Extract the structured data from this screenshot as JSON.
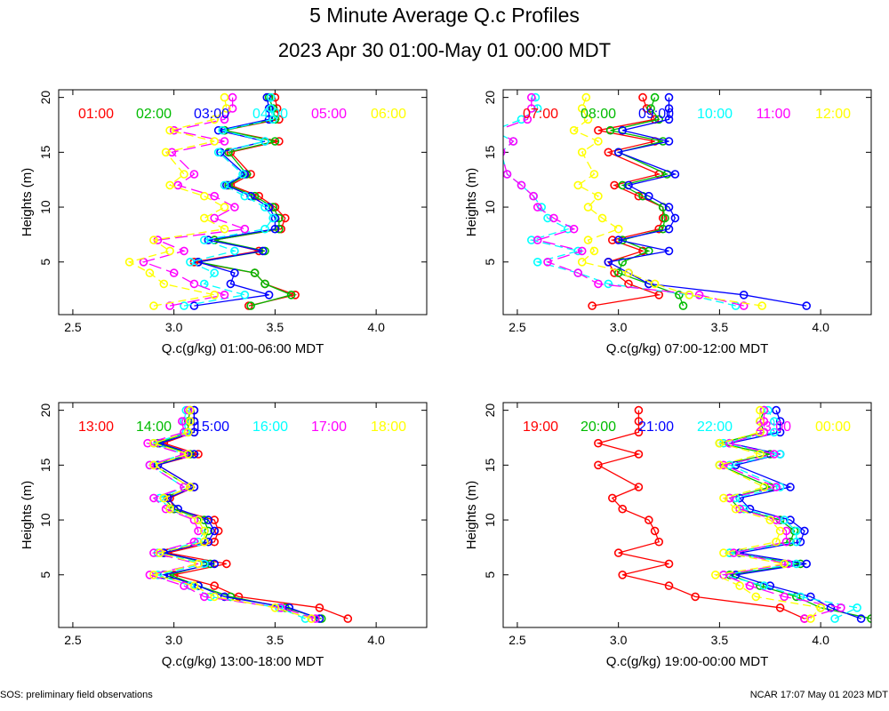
{
  "title": "5 Minute Average Q.c Profiles",
  "subtitle": "2023 Apr 30 01:00-May 01 00:00 MDT",
  "footer_left": "SOS: preliminary field observations",
  "footer_right": "NCAR 17:07 May 01 2023 MDT",
  "colors": [
    "#ff0000",
    "#00bb00",
    "#0000ff",
    "#00ffff",
    "#ff00ff",
    "#ffff00"
  ],
  "heights": [
    1,
    2,
    3,
    4,
    5,
    6,
    7,
    8,
    9,
    10,
    11,
    12,
    13,
    15,
    16,
    17,
    18,
    19,
    20
  ],
  "chart_data": [
    {
      "type": "line",
      "xlabel": "Q.c(g/kg) 01:00-06:00 MDT",
      "ylabel": "Heights (m)",
      "xlim": [
        2.43,
        4.25
      ],
      "ylim": [
        0.2,
        20.7
      ],
      "xticks": [
        "2.5",
        "3.0",
        "3.5",
        "4.0"
      ],
      "yticks": [
        "5",
        "10",
        "15",
        "20"
      ],
      "series": [
        {
          "name": "01:00",
          "values": [
            3.37,
            3.6,
            3.45,
            3.4,
            3.1,
            3.42,
            3.2,
            3.53,
            3.55,
            3.5,
            3.42,
            3.28,
            3.38,
            3.28,
            3.52,
            3.25,
            3.52,
            3.51,
            3.5
          ]
        },
        {
          "name": "02:00",
          "values": [
            3.38,
            3.58,
            3.45,
            3.4,
            3.12,
            3.45,
            3.2,
            3.52,
            3.52,
            3.49,
            3.4,
            3.27,
            3.36,
            3.27,
            3.5,
            3.25,
            3.5,
            3.49,
            3.47
          ]
        },
        {
          "name": "03:00",
          "values": [
            3.1,
            3.47,
            3.28,
            3.3,
            3.12,
            3.44,
            3.17,
            3.5,
            3.5,
            3.47,
            3.38,
            3.26,
            3.35,
            3.23,
            3.45,
            3.22,
            3.47,
            3.47,
            3.46
          ]
        },
        {
          "name": "04:00",
          "values": [
            3.05,
            3.35,
            3.15,
            3.2,
            3.08,
            3.3,
            3.15,
            3.45,
            3.49,
            3.45,
            3.35,
            3.25,
            3.34,
            3.22,
            3.45,
            3.24,
            3.49,
            3.48,
            3.48
          ]
        },
        {
          "name": "05:00",
          "values": [
            2.98,
            3.25,
            3.1,
            3.0,
            2.85,
            3.05,
            2.92,
            3.35,
            3.2,
            3.3,
            3.2,
            3.02,
            3.1,
            2.99,
            3.25,
            3.0,
            3.25,
            3.29,
            3.29
          ]
        },
        {
          "name": "06:00",
          "values": [
            2.9,
            3.2,
            2.95,
            2.88,
            2.78,
            2.98,
            2.9,
            3.25,
            3.15,
            3.25,
            3.15,
            2.98,
            3.05,
            2.96,
            3.2,
            2.98,
            3.2,
            3.26,
            3.25
          ]
        }
      ]
    },
    {
      "type": "line",
      "xlabel": "Q.c(g/kg) 07:00-12:00 MDT",
      "ylabel": "Heights (m)",
      "xlim": [
        2.43,
        4.25
      ],
      "ylim": [
        0.2,
        20.7
      ],
      "xticks": [
        "2.5",
        "3.0",
        "3.5",
        "4.0"
      ],
      "yticks": [
        "5",
        "10",
        "15",
        "20"
      ],
      "series": [
        {
          "name": "07:00",
          "values": [
            2.87,
            3.2,
            3.05,
            2.98,
            2.95,
            3.12,
            2.97,
            3.2,
            3.22,
            3.22,
            3.1,
            2.98,
            3.2,
            2.95,
            3.18,
            2.9,
            3.18,
            3.14,
            3.12
          ]
        },
        {
          "name": "08:00",
          "values": [
            3.32,
            3.3,
            3.15,
            3.0,
            3.02,
            3.15,
            3.02,
            3.22,
            3.23,
            3.22,
            3.12,
            3.02,
            3.24,
            3.0,
            3.22,
            2.96,
            3.2,
            3.16,
            3.18
          ]
        },
        {
          "name": "09:00",
          "values": [
            3.93,
            3.62,
            3.15,
            3.05,
            2.95,
            3.25,
            3.0,
            3.25,
            3.28,
            3.25,
            3.15,
            3.05,
            3.28,
            3.0,
            3.25,
            3.02,
            3.25,
            3.25,
            3.25
          ]
        },
        {
          "name": "10:00",
          "values": [
            3.58,
            3.35,
            2.95,
            2.8,
            2.6,
            2.8,
            2.57,
            2.75,
            2.65,
            2.62,
            2.58,
            2.52,
            2.45,
            2.42,
            2.48,
            2.38,
            2.52,
            2.6,
            2.59
          ]
        },
        {
          "name": "11:00",
          "values": [
            3.62,
            3.4,
            2.9,
            2.8,
            2.65,
            2.82,
            2.6,
            2.78,
            2.68,
            2.6,
            2.58,
            2.52,
            2.45,
            2.42,
            2.48,
            2.4,
            2.55,
            2.57,
            2.57
          ]
        },
        {
          "name": "12:00",
          "values": [
            3.71,
            3.35,
            3.18,
            3.05,
            2.82,
            2.88,
            2.85,
            3.0,
            2.92,
            2.85,
            2.9,
            2.8,
            2.88,
            2.82,
            2.9,
            2.78,
            2.85,
            2.82,
            2.84
          ]
        }
      ]
    },
    {
      "type": "line",
      "xlabel": "Q.c(g/kg) 13:00-18:00 MDT",
      "ylabel": "Heights (m)",
      "xlim": [
        2.43,
        4.25
      ],
      "ylim": [
        0.2,
        20.7
      ],
      "xticks": [
        "2.5",
        "3.0",
        "3.5",
        "4.0"
      ],
      "yticks": [
        "5",
        "10",
        "15",
        "20"
      ],
      "series": [
        {
          "name": "13:00",
          "values": [
            3.86,
            3.72,
            3.32,
            3.2,
            3.0,
            3.26,
            2.97,
            3.2,
            3.22,
            3.2,
            3.0,
            2.98,
            3.1,
            2.92,
            3.12,
            2.95,
            3.1,
            3.1,
            3.1
          ]
        },
        {
          "name": "14:00",
          "values": [
            3.73,
            3.55,
            3.28,
            3.12,
            2.98,
            3.18,
            2.95,
            3.15,
            3.17,
            3.15,
            3.0,
            2.95,
            3.08,
            2.9,
            3.08,
            2.92,
            3.07,
            3.07,
            3.08
          ]
        },
        {
          "name": "15:00",
          "values": [
            3.72,
            3.57,
            3.25,
            3.12,
            2.95,
            3.2,
            2.95,
            3.17,
            3.2,
            3.17,
            3.02,
            2.97,
            3.1,
            2.92,
            3.1,
            2.93,
            3.1,
            3.1,
            3.1
          ]
        },
        {
          "name": "16:00",
          "values": [
            3.65,
            3.52,
            3.18,
            3.08,
            2.92,
            3.15,
            2.92,
            3.12,
            3.15,
            3.12,
            2.98,
            2.93,
            3.05,
            2.88,
            3.05,
            2.9,
            3.06,
            3.05,
            3.06
          ]
        },
        {
          "name": "17:00",
          "values": [
            3.7,
            3.53,
            3.15,
            3.05,
            2.88,
            3.12,
            2.9,
            3.1,
            3.12,
            3.1,
            2.96,
            2.9,
            3.05,
            2.88,
            3.05,
            2.87,
            3.05,
            3.04,
            3.07
          ]
        },
        {
          "name": "18:00",
          "values": [
            3.68,
            3.5,
            3.2,
            3.1,
            2.9,
            3.12,
            2.93,
            3.15,
            3.15,
            3.12,
            2.98,
            2.95,
            3.08,
            2.9,
            3.07,
            2.9,
            3.07,
            3.08,
            3.08
          ]
        }
      ]
    },
    {
      "type": "line",
      "xlabel": "Q.c(g/kg) 19:00-00:00 MDT",
      "ylabel": "Heights (m)",
      "xlim": [
        2.43,
        4.25
      ],
      "ylim": [
        0.2,
        20.7
      ],
      "xticks": [
        "2.5",
        "3.0",
        "3.5",
        "4.0"
      ],
      "yticks": [
        "5",
        "10",
        "15",
        "20"
      ],
      "series": [
        {
          "name": "19:00",
          "values": [
            3.92,
            3.8,
            3.38,
            3.25,
            3.02,
            3.25,
            3.0,
            3.2,
            3.18,
            3.15,
            3.02,
            2.97,
            3.1,
            2.9,
            3.1,
            2.9,
            3.1,
            3.1,
            3.1
          ]
        },
        {
          "name": "20:00",
          "values": [
            4.25,
            4.0,
            3.88,
            3.7,
            3.55,
            3.9,
            3.55,
            3.85,
            3.87,
            3.8,
            3.6,
            3.55,
            3.75,
            3.5,
            3.75,
            3.5,
            3.72,
            3.7,
            3.72
          ]
        },
        {
          "name": "21:00",
          "values": [
            4.2,
            4.05,
            3.95,
            3.75,
            3.58,
            3.93,
            3.6,
            3.9,
            3.92,
            3.85,
            3.65,
            3.6,
            3.85,
            3.58,
            3.8,
            3.55,
            3.8,
            3.8,
            3.78
          ]
        },
        {
          "name": "22:00",
          "values": [
            4.07,
            4.18,
            3.9,
            3.72,
            3.52,
            3.88,
            3.55,
            3.88,
            3.88,
            3.82,
            3.62,
            3.58,
            3.8,
            3.55,
            3.8,
            3.52,
            3.77,
            3.77,
            3.74
          ]
        },
        {
          "name": "23:00",
          "values": [
            3.92,
            4.1,
            3.82,
            3.65,
            3.52,
            3.84,
            3.57,
            3.83,
            3.83,
            3.78,
            3.6,
            3.55,
            3.78,
            3.52,
            3.77,
            3.55,
            3.72,
            3.72,
            3.72
          ]
        },
        {
          "name": "00:00",
          "values": [
            3.95,
            4.0,
            3.68,
            3.6,
            3.48,
            3.82,
            3.52,
            3.78,
            3.8,
            3.75,
            3.58,
            3.52,
            3.72,
            3.5,
            3.7,
            3.5,
            3.7,
            3.7,
            3.7
          ]
        }
      ]
    }
  ]
}
